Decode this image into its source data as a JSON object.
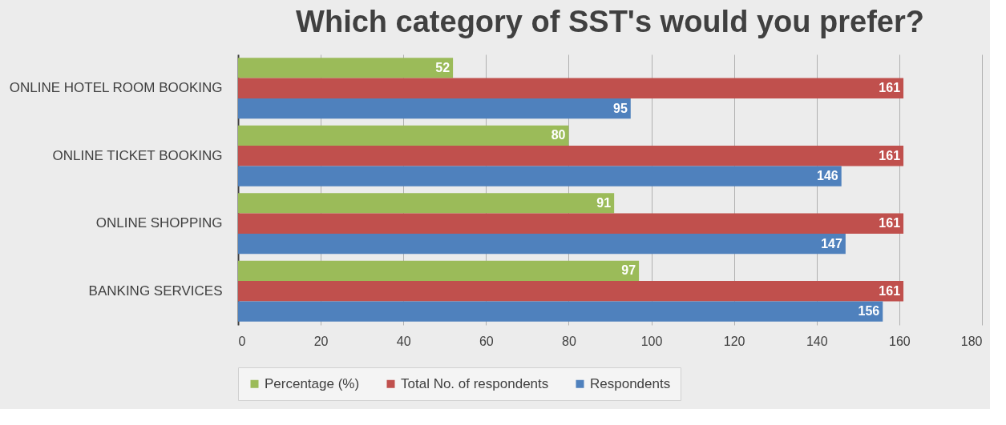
{
  "chart_data": {
    "type": "bar",
    "orientation": "horizontal",
    "title": "Which category of SST's would you prefer?",
    "categories": [
      "ONLINE HOTEL ROOM BOOKING",
      "ONLINE TICKET BOOKING",
      "ONLINE SHOPPING",
      "BANKING SERVICES"
    ],
    "series": [
      {
        "name": "Percentage (%)",
        "color": "#9bbb59",
        "values": [
          52,
          80,
          91,
          97
        ]
      },
      {
        "name": "Total No. of respondents",
        "color": "#c0504d",
        "values": [
          161,
          161,
          161,
          161
        ]
      },
      {
        "name": "Respondents",
        "color": "#4f81bd",
        "values": [
          95,
          146,
          147,
          156
        ]
      }
    ],
    "xlim": [
      0,
      180
    ],
    "xticks": [
      0,
      20,
      40,
      60,
      80,
      100,
      120,
      140,
      160,
      180
    ],
    "grid": "x",
    "legend": "bottom",
    "data_labels": true
  }
}
